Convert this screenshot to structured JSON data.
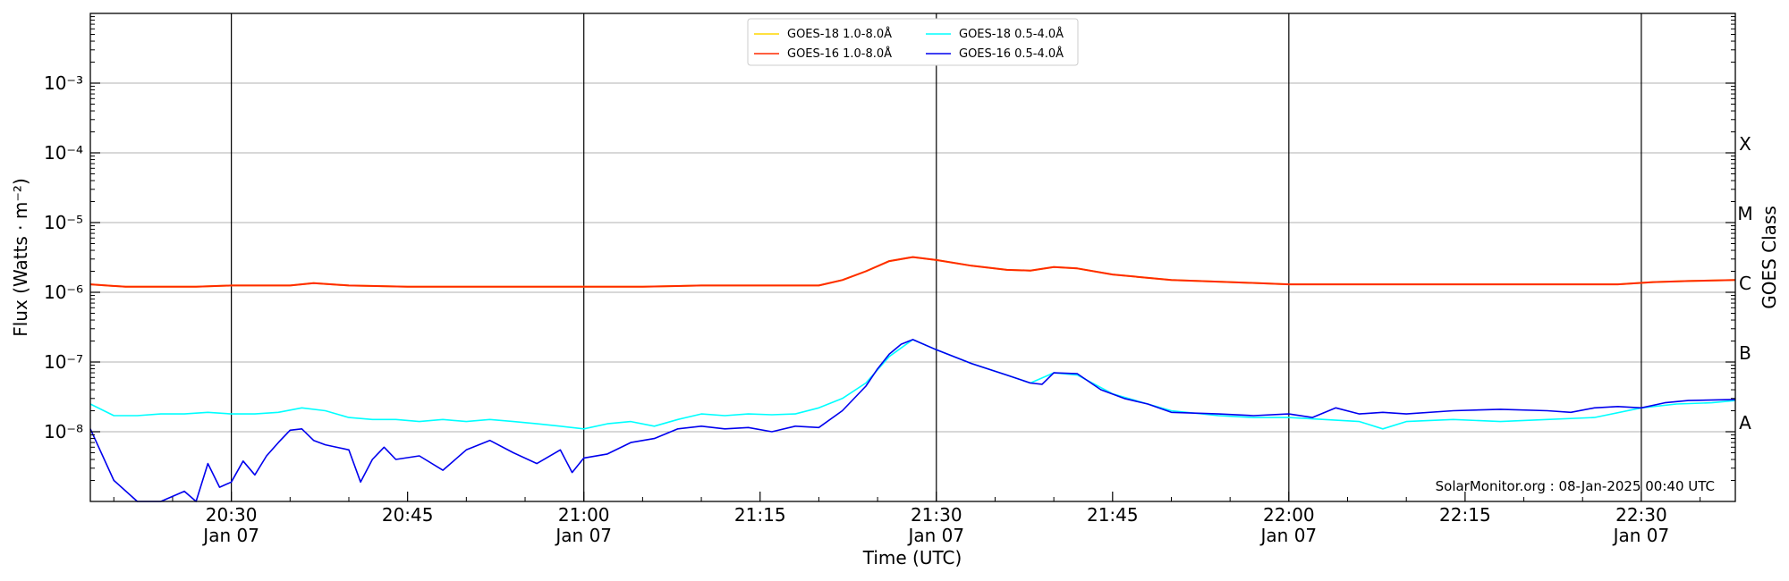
{
  "chart_data": {
    "type": "line",
    "xlabel": "Time (UTC)",
    "ylabel": "Flux (Watts · m⁻²)",
    "y2label": "GOES Class",
    "yscale": "log",
    "ylim": [
      1e-09,
      0.01
    ],
    "xlim": [
      "2025-01-07 20:18",
      "2025-01-07 22:38"
    ],
    "grid": "horizontal at decades",
    "legend_position": "top-center",
    "credit": "SolarMonitor.org : 08-Jan-2025 00:40 UTC",
    "date_label": "Jan 07",
    "x_ticks": [
      {
        "time": "20:30",
        "label": "20:30",
        "date": true,
        "vline": true
      },
      {
        "time": "20:45",
        "label": "20:45",
        "date": false,
        "vline": false
      },
      {
        "time": "21:00",
        "label": "21:00",
        "date": true,
        "vline": true
      },
      {
        "time": "21:15",
        "label": "21:15",
        "date": false,
        "vline": false
      },
      {
        "time": "21:30",
        "label": "21:30",
        "date": true,
        "vline": true
      },
      {
        "time": "21:45",
        "label": "21:45",
        "date": false,
        "vline": false
      },
      {
        "time": "22:00",
        "label": "22:00",
        "date": true,
        "vline": true
      },
      {
        "time": "22:15",
        "label": "22:15",
        "date": false,
        "vline": false
      },
      {
        "time": "22:30",
        "label": "22:30",
        "date": true,
        "vline": true
      }
    ],
    "y_ticks": [
      {
        "value": 1e-08,
        "label": "10⁻⁸"
      },
      {
        "value": 1e-07,
        "label": "10⁻⁷"
      },
      {
        "value": 1e-06,
        "label": "10⁻⁶"
      },
      {
        "value": 1e-05,
        "label": "10⁻⁵"
      },
      {
        "value": 0.0001,
        "label": "10⁻⁴"
      },
      {
        "value": 0.001,
        "label": "10⁻³"
      }
    ],
    "goes_classes": [
      {
        "label": "A",
        "value": 1.1e-08
      },
      {
        "label": "B",
        "value": 1.1e-07
      },
      {
        "label": "C",
        "value": 1.1e-06
      },
      {
        "label": "M",
        "value": 1.1e-05
      },
      {
        "label": "X",
        "value": 0.00011
      }
    ],
    "series": [
      {
        "name": "GOES-18 1.0-8.0Å",
        "color": "#ffd700",
        "x": [
          "20:18",
          "20:21",
          "20:24",
          "20:27",
          "20:30",
          "20:35",
          "20:37",
          "20:40",
          "20:45",
          "20:50",
          "20:55",
          "21:00",
          "21:05",
          "21:10",
          "21:15",
          "21:20",
          "21:22",
          "21:24",
          "21:26",
          "21:28",
          "21:30",
          "21:33",
          "21:36",
          "21:38",
          "21:40",
          "21:42",
          "21:45",
          "21:50",
          "21:55",
          "22:00",
          "22:10",
          "22:20",
          "22:28",
          "22:31",
          "22:34",
          "22:38"
        ],
        "y": [
          1.3e-06,
          1.2e-06,
          1.2e-06,
          1.2e-06,
          1.25e-06,
          1.25e-06,
          1.35e-06,
          1.25e-06,
          1.2e-06,
          1.2e-06,
          1.2e-06,
          1.2e-06,
          1.2e-06,
          1.25e-06,
          1.25e-06,
          1.25e-06,
          1.5e-06,
          2e-06,
          2.8e-06,
          3.2e-06,
          2.9e-06,
          2.4e-06,
          2.1e-06,
          2.05e-06,
          2.3e-06,
          2.2e-06,
          1.8e-06,
          1.5e-06,
          1.4e-06,
          1.3e-06,
          1.3e-06,
          1.3e-06,
          1.3e-06,
          1.4e-06,
          1.45e-06,
          1.5e-06
        ]
      },
      {
        "name": "GOES-16 1.0-8.0Å",
        "color": "#ff2a00",
        "x": [
          "20:18",
          "20:21",
          "20:24",
          "20:27",
          "20:30",
          "20:35",
          "20:37",
          "20:40",
          "20:45",
          "20:50",
          "20:55",
          "21:00",
          "21:05",
          "21:10",
          "21:15",
          "21:20",
          "21:22",
          "21:24",
          "21:26",
          "21:28",
          "21:30",
          "21:33",
          "21:36",
          "21:38",
          "21:40",
          "21:42",
          "21:45",
          "21:50",
          "21:55",
          "22:00",
          "22:10",
          "22:20",
          "22:28",
          "22:31",
          "22:34",
          "22:38"
        ],
        "y": [
          1.3e-06,
          1.2e-06,
          1.2e-06,
          1.2e-06,
          1.25e-06,
          1.25e-06,
          1.35e-06,
          1.25e-06,
          1.2e-06,
          1.2e-06,
          1.2e-06,
          1.2e-06,
          1.2e-06,
          1.25e-06,
          1.25e-06,
          1.25e-06,
          1.5e-06,
          2e-06,
          2.8e-06,
          3.2e-06,
          2.9e-06,
          2.4e-06,
          2.1e-06,
          2.05e-06,
          2.3e-06,
          2.2e-06,
          1.8e-06,
          1.5e-06,
          1.4e-06,
          1.3e-06,
          1.3e-06,
          1.3e-06,
          1.3e-06,
          1.4e-06,
          1.45e-06,
          1.5e-06
        ]
      },
      {
        "name": "GOES-18 0.5-4.0Å",
        "color": "#00ffff",
        "x": [
          "20:18",
          "20:20",
          "20:22",
          "20:24",
          "20:26",
          "20:28",
          "20:30",
          "20:32",
          "20:34",
          "20:36",
          "20:38",
          "20:40",
          "20:42",
          "20:44",
          "20:46",
          "20:48",
          "20:50",
          "20:52",
          "20:54",
          "20:56",
          "20:58",
          "21:00",
          "21:02",
          "21:04",
          "21:06",
          "21:08",
          "21:10",
          "21:12",
          "21:14",
          "21:16",
          "21:18",
          "21:20",
          "21:22",
          "21:24",
          "21:26",
          "21:28",
          "21:30",
          "21:33",
          "21:36",
          "21:38",
          "21:40",
          "21:42",
          "21:45",
          "21:48",
          "21:50",
          "21:54",
          "21:57",
          "22:00",
          "22:03",
          "22:06",
          "22:08",
          "22:10",
          "22:14",
          "22:18",
          "22:22",
          "22:26",
          "22:30",
          "22:33",
          "22:36",
          "22:38"
        ],
        "y": [
          2.5e-08,
          1.7e-08,
          1.7e-08,
          1.8e-08,
          1.8e-08,
          1.9e-08,
          1.8e-08,
          1.8e-08,
          1.9e-08,
          2.2e-08,
          2e-08,
          1.6e-08,
          1.5e-08,
          1.5e-08,
          1.4e-08,
          1.5e-08,
          1.4e-08,
          1.5e-08,
          1.4e-08,
          1.3e-08,
          1.2e-08,
          1.1e-08,
          1.3e-08,
          1.4e-08,
          1.2e-08,
          1.5e-08,
          1.8e-08,
          1.7e-08,
          1.8e-08,
          1.75e-08,
          1.8e-08,
          2.2e-08,
          3e-08,
          5e-08,
          1.2e-07,
          2.1e-07,
          1.5e-07,
          9.5e-08,
          6.5e-08,
          5e-08,
          7e-08,
          6.5e-08,
          3.5e-08,
          2.5e-08,
          2e-08,
          1.7e-08,
          1.6e-08,
          1.6e-08,
          1.5e-08,
          1.4e-08,
          1.1e-08,
          1.4e-08,
          1.5e-08,
          1.4e-08,
          1.5e-08,
          1.6e-08,
          2.2e-08,
          2.5e-08,
          2.6e-08,
          2.8e-08
        ]
      },
      {
        "name": "GOES-16 0.5-4.0Å",
        "color": "#0000ee",
        "x": [
          "20:18",
          "20:20",
          "20:22",
          "20:24",
          "20:26",
          "20:27",
          "20:28",
          "20:29",
          "20:30",
          "20:31",
          "20:32",
          "20:33",
          "20:34",
          "20:35",
          "20:36",
          "20:37",
          "20:38",
          "20:40",
          "20:41",
          "20:42",
          "20:43",
          "20:44",
          "20:46",
          "20:48",
          "20:50",
          "20:52",
          "20:54",
          "20:56",
          "20:58",
          "20:59",
          "21:00",
          "21:02",
          "21:04",
          "21:06",
          "21:08",
          "21:10",
          "21:12",
          "21:14",
          "21:16",
          "21:18",
          "21:20",
          "21:22",
          "21:24",
          "21:25",
          "21:26",
          "21:27",
          "21:28",
          "21:30",
          "21:33",
          "21:36",
          "21:38",
          "21:39",
          "21:40",
          "21:42",
          "21:44",
          "21:46",
          "21:48",
          "21:50",
          "21:54",
          "21:57",
          "22:00",
          "22:02",
          "22:04",
          "22:06",
          "22:08",
          "22:10",
          "22:14",
          "22:18",
          "22:22",
          "22:24",
          "22:26",
          "22:28",
          "22:30",
          "22:32",
          "22:34",
          "22:38"
        ],
        "y": [
          1.1e-08,
          2e-09,
          1e-09,
          1e-09,
          1.4e-09,
          1e-09,
          3.5e-09,
          1.6e-09,
          1.9e-09,
          3.8e-09,
          2.4e-09,
          4.5e-09,
          7e-09,
          1.05e-08,
          1.1e-08,
          7.5e-09,
          6.5e-09,
          5.5e-09,
          1.9e-09,
          4e-09,
          6e-09,
          4e-09,
          4.5e-09,
          2.8e-09,
          5.5e-09,
          7.5e-09,
          5e-09,
          3.5e-09,
          5.5e-09,
          2.6e-09,
          4.2e-09,
          4.8e-09,
          7e-09,
          8e-09,
          1.1e-08,
          1.2e-08,
          1.1e-08,
          1.15e-08,
          1e-08,
          1.2e-08,
          1.15e-08,
          2e-08,
          4.5e-08,
          8e-08,
          1.3e-07,
          1.8e-07,
          2.1e-07,
          1.5e-07,
          9.5e-08,
          6.5e-08,
          5e-08,
          4.8e-08,
          7e-08,
          6.8e-08,
          4e-08,
          3e-08,
          2.5e-08,
          1.9e-08,
          1.8e-08,
          1.7e-08,
          1.8e-08,
          1.6e-08,
          2.2e-08,
          1.8e-08,
          1.9e-08,
          1.8e-08,
          2e-08,
          2.1e-08,
          2e-08,
          1.9e-08,
          2.2e-08,
          2.3e-08,
          2.2e-08,
          2.6e-08,
          2.8e-08,
          2.9e-08
        ]
      }
    ]
  }
}
